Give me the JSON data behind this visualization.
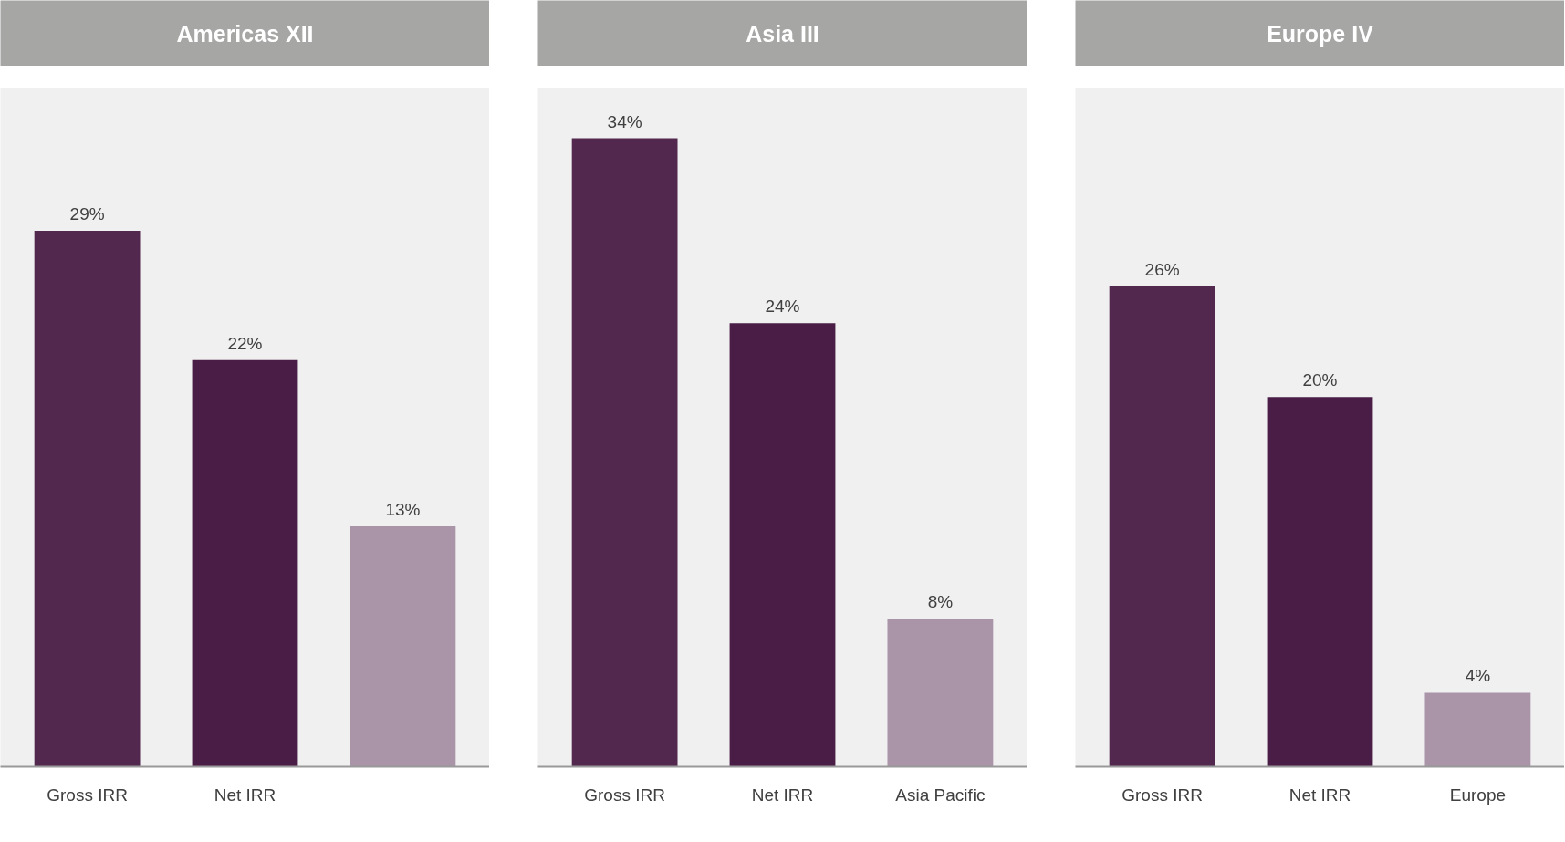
{
  "chart_data": [
    {
      "type": "bar",
      "title": "Americas XII",
      "categories": [
        "Gross IRR",
        "Net IRR",
        null
      ],
      "values": [
        29,
        22,
        13
      ],
      "colors": [
        "#52284f",
        "#4a1d46",
        "#a994a8"
      ],
      "value_labels": [
        "29%",
        "22%",
        "13%"
      ],
      "grid": false
    },
    {
      "type": "bar",
      "title": "Asia III",
      "categories": [
        "Gross IRR",
        "Net IRR",
        "Asia Pacific"
      ],
      "values": [
        34,
        24,
        8
      ],
      "colors": [
        "#52284f",
        "#4a1d46",
        "#a994a8"
      ],
      "value_labels": [
        "34%",
        "24%",
        "8%"
      ],
      "grid": false
    },
    {
      "type": "bar",
      "title": "Europe IV",
      "categories": [
        "Gross IRR",
        "Net IRR",
        "Europe"
      ],
      "values": [
        26,
        20,
        4
      ],
      "colors": [
        "#52284f",
        "#4a1d46",
        "#a994a8"
      ],
      "value_labels": [
        "26%",
        "20%",
        "4%"
      ],
      "grid": false
    }
  ]
}
